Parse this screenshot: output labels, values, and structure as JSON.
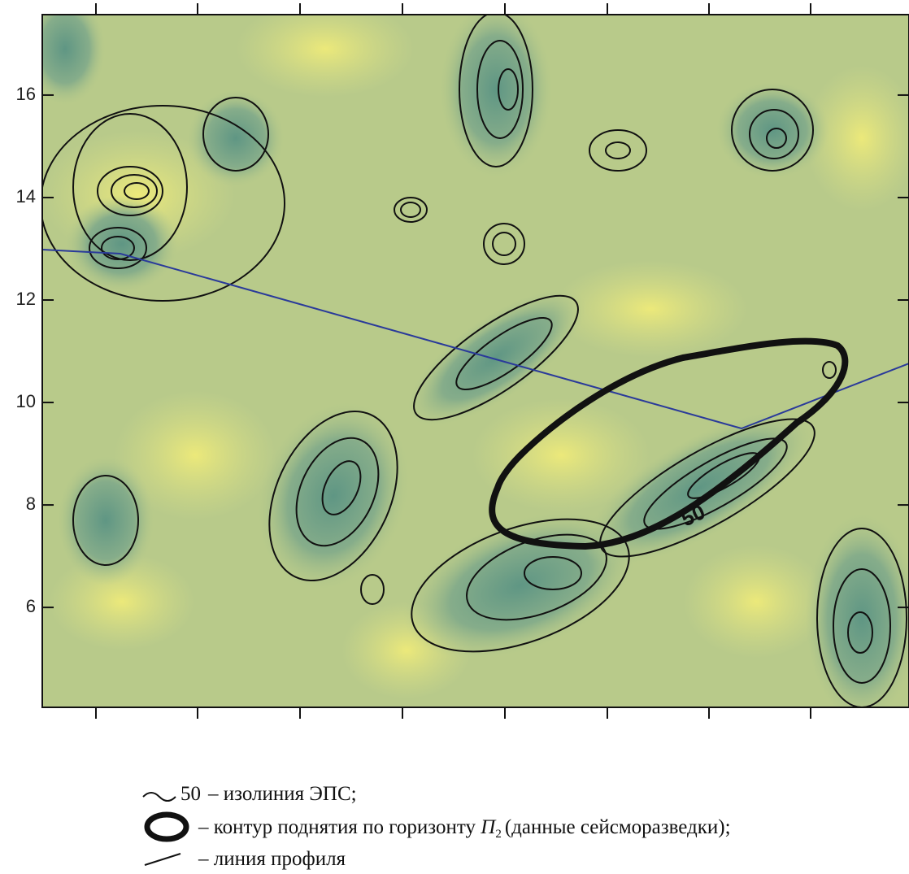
{
  "map": {
    "ylim": [
      4.05,
      17.57
    ],
    "yticks": [
      16,
      14,
      12,
      10,
      8,
      6
    ],
    "contour_label": "50",
    "legend": {
      "isoline": {
        "value": "50",
        "text": "– изолиния ЭПС;"
      },
      "uplift": {
        "text": "– контур поднятия по горизонту ",
        "symbol": "П",
        "subscript": "2",
        "note": "(данные сейсморазведки);"
      },
      "profile": {
        "text": "– линия профиля"
      }
    }
  }
}
